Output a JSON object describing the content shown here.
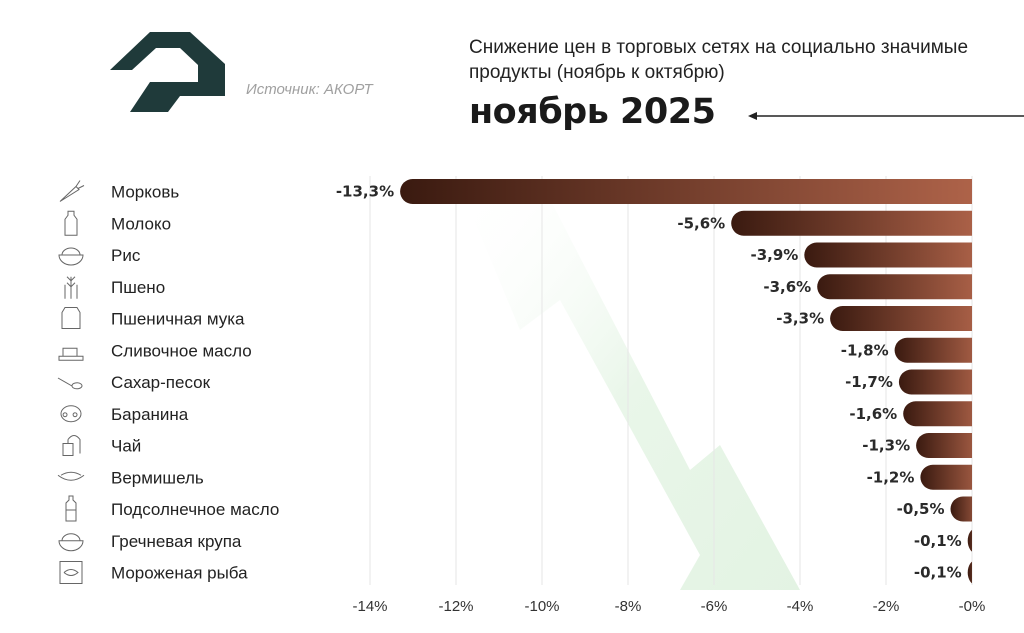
{
  "header": {
    "source": "Источник: АКОРТ",
    "subtitle": "Снижение цен в торговых сетях на социально значимые продукты (ноябрь к октябрю)",
    "period": "ноябрь 2025"
  },
  "colors": {
    "bar_dark": "#3a1a10",
    "bar_light": "#b0644a",
    "logo": "#1f3a3a",
    "watermark_arrow": "#e9f6e9"
  },
  "icons": [
    "carrot-icon",
    "milk-bottle-icon",
    "rice-bowl-icon",
    "wheat-icon",
    "flour-bag-icon",
    "butter-icon",
    "sugar-spoon-icon",
    "sheep-icon",
    "tea-bag-icon",
    "noodle-bowl-icon",
    "oil-bottle-icon",
    "buckwheat-bowl-icon",
    "frozen-fish-icon"
  ],
  "chart_data": {
    "type": "bar",
    "orientation": "horizontal",
    "categories": [
      "Морковь",
      "Молоко",
      "Рис",
      "Пшено",
      "Пшеничная мука",
      "Сливочное масло",
      "Сахар-песок",
      "Баранина",
      "Чай",
      "Вермишель",
      "Подсолнечное масло",
      "Гречневая крупа",
      "Мороженая рыба"
    ],
    "values": [
      -13.3,
      -5.6,
      -3.9,
      -3.6,
      -3.3,
      -1.8,
      -1.7,
      -1.6,
      -1.3,
      -1.2,
      -0.5,
      -0.1,
      -0.1
    ],
    "value_labels": [
      "-13,3%",
      "-5,6%",
      "-3,9%",
      "-3,6%",
      "-3,3%",
      "-1,8%",
      "-1,7%",
      "-1,6%",
      "-1,3%",
      "-1,2%",
      "-0,5%",
      "-0,1%",
      "-0,1%"
    ],
    "x_ticks": [
      -14,
      -12,
      -10,
      -8,
      -6,
      -4,
      -2,
      0
    ],
    "x_tick_labels": [
      "-14%",
      "-12%",
      "-10%",
      "-8%",
      "-6%",
      "-4%",
      "-2%",
      "-0%"
    ],
    "xlim": [
      -14,
      0
    ],
    "grid": true
  }
}
